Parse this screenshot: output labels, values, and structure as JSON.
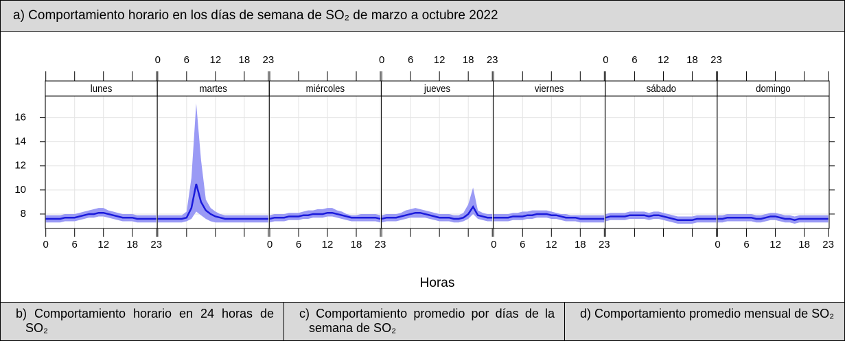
{
  "table": {
    "header": "a) Comportamiento horario en los días de semana de SO₂ de marzo a octubre 2022",
    "captions": [
      "b) Comportamiento horario en 24 horas de SO₂",
      "c) Comportamiento promedio por días de la semana de SO₂",
      "d) Comportamiento promedio mensual de SO₂"
    ]
  },
  "chart_data": {
    "type": "line",
    "xlabel": "Horas",
    "x": [
      0,
      1,
      2,
      3,
      4,
      5,
      6,
      7,
      8,
      9,
      10,
      11,
      12,
      13,
      14,
      15,
      16,
      17,
      18,
      19,
      20,
      21,
      22,
      23
    ],
    "xlim": [
      -0.1,
      23.2
    ],
    "xticks": [
      0,
      6,
      12,
      18,
      23
    ],
    "ylim": [
      6.8,
      17.8
    ],
    "yticks": [
      8,
      10,
      12,
      14,
      16
    ],
    "grid": true,
    "line_color": "#1a1adb",
    "band_color": "#9a9af5",
    "panels": [
      {
        "label": "lunes",
        "values": [
          7.6,
          7.6,
          7.6,
          7.6,
          7.7,
          7.7,
          7.7,
          7.8,
          7.9,
          8.0,
          8.0,
          8.1,
          8.1,
          8.0,
          7.9,
          7.8,
          7.7,
          7.7,
          7.7,
          7.6,
          7.6,
          7.6,
          7.6,
          7.6
        ],
        "upper": [
          7.9,
          7.9,
          7.9,
          7.9,
          8.0,
          8.0,
          8.0,
          8.1,
          8.2,
          8.3,
          8.4,
          8.5,
          8.5,
          8.3,
          8.2,
          8.1,
          8.0,
          8.0,
          8.0,
          7.9,
          7.9,
          7.9,
          7.9,
          7.9
        ],
        "lower": [
          7.3,
          7.3,
          7.3,
          7.3,
          7.4,
          7.4,
          7.4,
          7.5,
          7.6,
          7.7,
          7.7,
          7.8,
          7.8,
          7.7,
          7.6,
          7.5,
          7.4,
          7.4,
          7.4,
          7.3,
          7.3,
          7.3,
          7.3,
          7.3
        ]
      },
      {
        "label": "martes",
        "values": [
          7.6,
          7.6,
          7.6,
          7.6,
          7.6,
          7.6,
          7.7,
          8.5,
          10.5,
          9.0,
          8.3,
          8.0,
          7.8,
          7.7,
          7.6,
          7.6,
          7.6,
          7.6,
          7.6,
          7.6,
          7.6,
          7.6,
          7.6,
          7.6
        ],
        "upper": [
          7.9,
          7.9,
          7.9,
          7.9,
          7.9,
          7.9,
          8.2,
          11.0,
          17.2,
          12.5,
          9.2,
          8.5,
          8.2,
          8.0,
          7.9,
          7.9,
          7.9,
          7.9,
          7.9,
          7.9,
          7.9,
          7.9,
          7.9,
          7.9
        ],
        "lower": [
          7.3,
          7.3,
          7.3,
          7.3,
          7.3,
          7.3,
          7.4,
          7.6,
          8.2,
          7.9,
          7.6,
          7.4,
          7.3,
          7.3,
          7.3,
          7.3,
          7.3,
          7.3,
          7.3,
          7.3,
          7.3,
          7.3,
          7.3,
          7.3
        ]
      },
      {
        "label": "miércoles",
        "values": [
          7.6,
          7.7,
          7.7,
          7.7,
          7.8,
          7.8,
          7.8,
          7.9,
          7.9,
          8.0,
          8.0,
          8.0,
          8.1,
          8.1,
          8.0,
          7.9,
          7.8,
          7.7,
          7.7,
          7.7,
          7.7,
          7.7,
          7.7,
          7.6
        ],
        "upper": [
          7.9,
          8.0,
          8.0,
          8.0,
          8.1,
          8.1,
          8.1,
          8.2,
          8.3,
          8.3,
          8.4,
          8.4,
          8.5,
          8.5,
          8.3,
          8.2,
          8.0,
          7.9,
          7.9,
          8.0,
          8.0,
          8.0,
          8.0,
          7.9
        ],
        "lower": [
          7.3,
          7.4,
          7.4,
          7.4,
          7.5,
          7.5,
          7.5,
          7.6,
          7.6,
          7.7,
          7.7,
          7.7,
          7.8,
          7.8,
          7.7,
          7.6,
          7.5,
          7.4,
          7.4,
          7.4,
          7.4,
          7.4,
          7.4,
          7.3
        ]
      },
      {
        "label": "jueves",
        "values": [
          7.6,
          7.7,
          7.7,
          7.7,
          7.8,
          7.9,
          8.0,
          8.1,
          8.1,
          8.0,
          7.9,
          7.8,
          7.7,
          7.7,
          7.7,
          7.6,
          7.6,
          7.7,
          8.0,
          8.6,
          7.9,
          7.8,
          7.7,
          7.7
        ],
        "upper": [
          7.9,
          8.0,
          8.0,
          8.0,
          8.1,
          8.3,
          8.4,
          8.5,
          8.4,
          8.3,
          8.2,
          8.1,
          8.0,
          8.0,
          8.0,
          7.9,
          7.9,
          8.1,
          8.8,
          10.2,
          8.3,
          8.1,
          8.0,
          8.0
        ],
        "lower": [
          7.3,
          7.4,
          7.4,
          7.4,
          7.5,
          7.6,
          7.7,
          7.7,
          7.7,
          7.7,
          7.6,
          7.5,
          7.4,
          7.4,
          7.4,
          7.3,
          7.3,
          7.4,
          7.6,
          8.0,
          7.6,
          7.5,
          7.4,
          7.4
        ]
      },
      {
        "label": "viernes",
        "values": [
          7.7,
          7.7,
          7.7,
          7.7,
          7.8,
          7.8,
          7.8,
          7.9,
          7.9,
          8.0,
          8.0,
          8.0,
          7.9,
          7.9,
          7.8,
          7.7,
          7.7,
          7.7,
          7.6,
          7.6,
          7.6,
          7.6,
          7.6,
          7.6
        ],
        "upper": [
          8.0,
          8.0,
          8.0,
          8.0,
          8.1,
          8.1,
          8.2,
          8.2,
          8.3,
          8.3,
          8.3,
          8.3,
          8.2,
          8.1,
          8.0,
          8.0,
          7.9,
          7.9,
          7.9,
          7.9,
          7.9,
          7.9,
          7.9,
          7.9
        ],
        "lower": [
          7.4,
          7.4,
          7.4,
          7.4,
          7.5,
          7.5,
          7.5,
          7.6,
          7.6,
          7.7,
          7.7,
          7.7,
          7.6,
          7.6,
          7.5,
          7.4,
          7.4,
          7.4,
          7.3,
          7.3,
          7.3,
          7.3,
          7.3,
          7.3
        ]
      },
      {
        "label": "sábado",
        "values": [
          7.7,
          7.8,
          7.8,
          7.8,
          7.8,
          7.9,
          7.9,
          7.9,
          7.9,
          7.8,
          7.9,
          7.9,
          7.8,
          7.7,
          7.6,
          7.5,
          7.5,
          7.5,
          7.5,
          7.6,
          7.6,
          7.6,
          7.6,
          7.6
        ],
        "upper": [
          8.0,
          8.1,
          8.1,
          8.1,
          8.1,
          8.2,
          8.2,
          8.2,
          8.2,
          8.1,
          8.2,
          8.2,
          8.1,
          8.0,
          7.9,
          7.8,
          7.8,
          7.8,
          7.8,
          7.9,
          7.9,
          7.9,
          7.9,
          7.9
        ],
        "lower": [
          7.4,
          7.5,
          7.5,
          7.5,
          7.5,
          7.6,
          7.6,
          7.6,
          7.6,
          7.5,
          7.6,
          7.6,
          7.5,
          7.4,
          7.3,
          7.2,
          7.2,
          7.2,
          7.2,
          7.3,
          7.3,
          7.3,
          7.3,
          7.3
        ]
      },
      {
        "label": "domingo",
        "values": [
          7.6,
          7.6,
          7.7,
          7.7,
          7.7,
          7.7,
          7.7,
          7.7,
          7.6,
          7.6,
          7.7,
          7.8,
          7.8,
          7.7,
          7.6,
          7.6,
          7.5,
          7.6,
          7.6,
          7.6,
          7.6,
          7.6,
          7.6,
          7.6
        ],
        "upper": [
          7.9,
          7.9,
          8.0,
          8.0,
          8.0,
          8.0,
          8.0,
          8.0,
          7.9,
          7.9,
          8.0,
          8.1,
          8.1,
          8.0,
          7.9,
          7.9,
          7.8,
          7.9,
          7.9,
          7.9,
          7.9,
          7.9,
          7.9,
          7.9
        ],
        "lower": [
          7.3,
          7.3,
          7.4,
          7.4,
          7.4,
          7.4,
          7.4,
          7.4,
          7.3,
          7.3,
          7.4,
          7.5,
          7.5,
          7.4,
          7.3,
          7.3,
          7.2,
          7.3,
          7.3,
          7.3,
          7.3,
          7.3,
          7.3,
          7.3
        ]
      }
    ]
  }
}
